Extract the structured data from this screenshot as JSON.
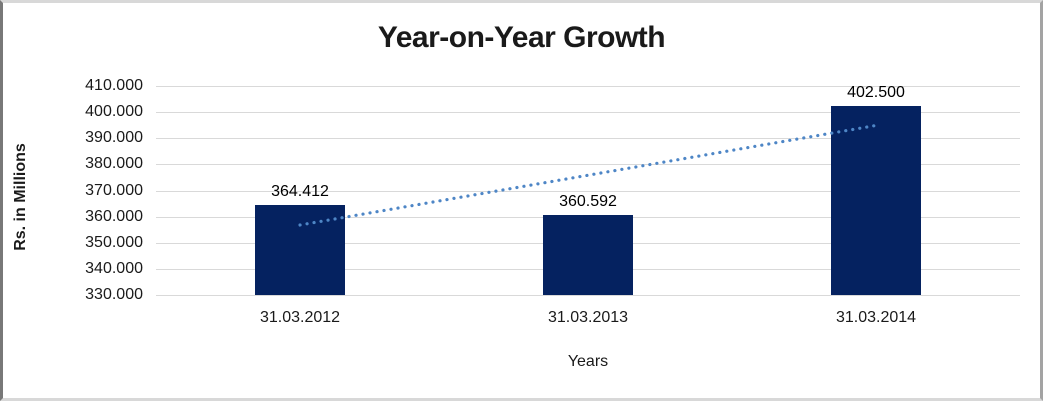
{
  "title": "Year-on-Year Growth",
  "y_axis_title": "Rs. in Millions",
  "x_axis_title": "Years",
  "colors": {
    "bar": "#052260",
    "trendline": "#4e86c6",
    "gridline": "#d9d9d9",
    "text": "#1a1a1a",
    "background": "#ffffff"
  },
  "chart_data": {
    "type": "bar",
    "title": "Year-on-Year Growth",
    "xlabel": "Years",
    "ylabel": "Rs. in Millions",
    "categories": [
      "31.03.2012",
      "31.03.2013",
      "31.03.2014"
    ],
    "values": [
      364.412,
      360.592,
      402.5
    ],
    "data_labels": [
      "364.412",
      "360.592",
      "402.500"
    ],
    "ylim": [
      330,
      410
    ],
    "ytick_step": 10,
    "ytick_labels": [
      "410.000",
      "400.000",
      "390.000",
      "380.000",
      "370.000",
      "360.000",
      "350.000",
      "340.000",
      "330.000"
    ],
    "grid": true,
    "legend": false,
    "trendline": {
      "style": "dotted",
      "start_value": 356.8,
      "end_value": 394.9
    }
  }
}
